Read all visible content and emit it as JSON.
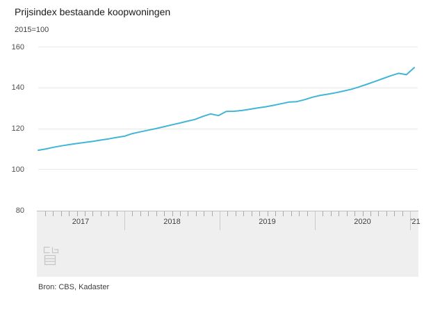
{
  "header": {
    "title": "Prijsindex bestaande koopwoningen",
    "subtitle": "2015=100"
  },
  "footer": {
    "source": "Bron: CBS, Kadaster",
    "logo_icon": "cbs-logo"
  },
  "navigator": {
    "year_labels": [
      "2017",
      "2018",
      "2019",
      "2020",
      "'21"
    ]
  },
  "chart_data": {
    "type": "line",
    "title": "Prijsindex bestaande koopwoningen",
    "subtitle": "2015=100",
    "grid": true,
    "legend": "none",
    "line_color": "#40b5d7",
    "ylim": [
      80,
      160
    ],
    "yticks": [
      160,
      140,
      120,
      100,
      80
    ],
    "x_range": [
      "2017-01",
      "2021-01"
    ],
    "x": [
      "2017-01",
      "2017-02",
      "2017-03",
      "2017-04",
      "2017-05",
      "2017-06",
      "2017-07",
      "2017-08",
      "2017-09",
      "2017-10",
      "2017-11",
      "2017-12",
      "2018-01",
      "2018-02",
      "2018-03",
      "2018-04",
      "2018-05",
      "2018-06",
      "2018-07",
      "2018-08",
      "2018-09",
      "2018-10",
      "2018-11",
      "2018-12",
      "2019-01",
      "2019-02",
      "2019-03",
      "2019-04",
      "2019-05",
      "2019-06",
      "2019-07",
      "2019-08",
      "2019-09",
      "2019-10",
      "2019-11",
      "2019-12",
      "2020-01",
      "2020-02",
      "2020-03",
      "2020-04",
      "2020-05",
      "2020-06",
      "2020-07",
      "2020-08",
      "2020-09",
      "2020-10",
      "2020-11",
      "2020-12",
      "2021-01"
    ],
    "series": [
      {
        "name": "Prijsindex bestaande koopwoningen",
        "values": [
          109.4,
          110.1,
          110.9,
          111.6,
          112.2,
          112.8,
          113.3,
          113.8,
          114.4,
          115.0,
          115.7,
          116.3,
          117.6,
          118.4,
          119.2,
          120.0,
          120.9,
          121.8,
          122.7,
          123.6,
          124.5,
          126.0,
          127.2,
          126.4,
          128.4,
          128.5,
          128.9,
          129.5,
          130.1,
          130.7,
          131.4,
          132.2,
          133.0,
          133.2,
          134.2,
          135.4,
          136.3,
          136.9,
          137.6,
          138.4,
          139.3,
          140.5,
          141.8,
          143.1,
          144.5,
          145.9,
          147.1,
          146.4,
          149.9
        ]
      }
    ]
  }
}
